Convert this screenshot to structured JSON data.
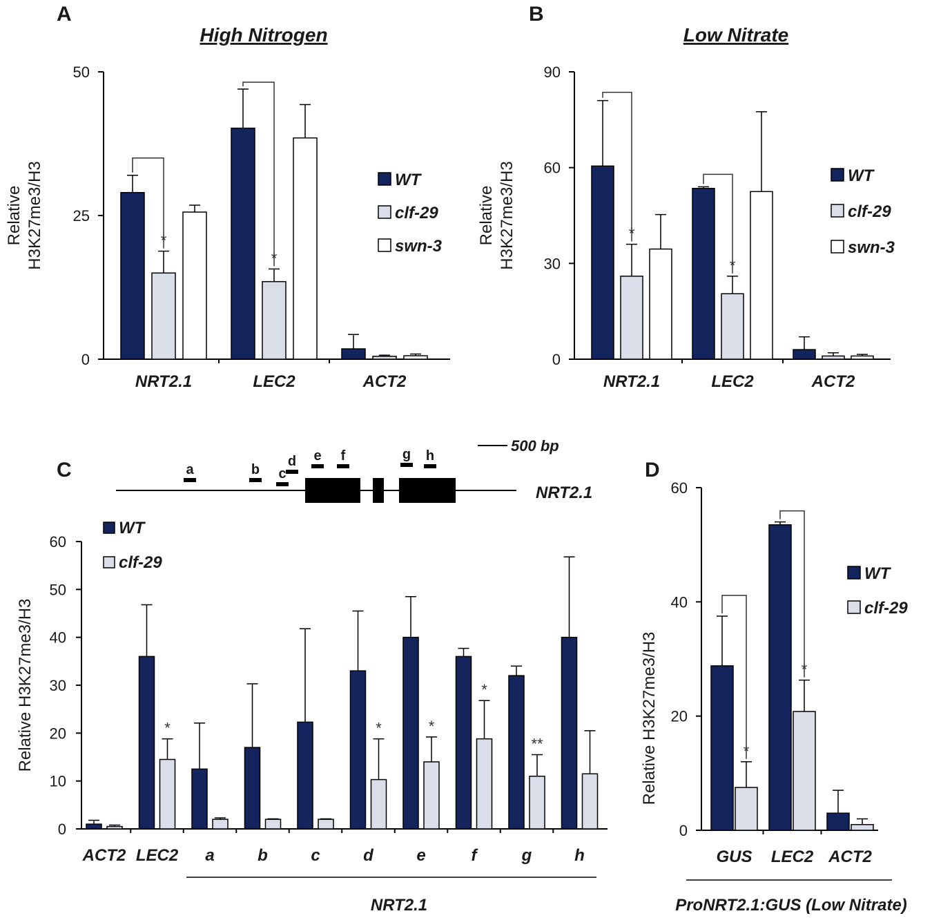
{
  "colors": {
    "WT": "#14245c",
    "clf-29": "#d9dee8",
    "swn-3": "#ffffff"
  },
  "chart_data": [
    {
      "id": "A",
      "type": "bar",
      "letter": "A",
      "title": "High Nitrogen",
      "ylabel": [
        "Relative",
        "H3K27me3/H3"
      ],
      "ylim": [
        0,
        50
      ],
      "yticks": [
        0,
        25,
        50
      ],
      "categories": [
        "NRT2.1",
        "LEC2",
        "ACT2"
      ],
      "series": [
        {
          "name": "WT",
          "values": [
            29,
            40.2,
            1.8
          ],
          "errors": [
            3,
            6.8,
            2.5
          ]
        },
        {
          "name": "clf-29",
          "values": [
            15,
            13.5,
            0.5
          ],
          "errors": [
            3.8,
            2.2,
            0.2
          ]
        },
        {
          "name": "swn-3",
          "values": [
            25.6,
            38.5,
            0.6
          ],
          "errors": [
            1.2,
            5.8,
            0.3
          ]
        }
      ],
      "stars": [
        {
          "cat": 0,
          "series": 1,
          "label": "*"
        },
        {
          "cat": 1,
          "series": 1,
          "label": "*"
        }
      ],
      "legend_position": "right"
    },
    {
      "id": "B",
      "type": "bar",
      "letter": "B",
      "title": "Low Nitrate",
      "ylabel": [
        "Relative",
        "H3K27me3/H3"
      ],
      "ylim": [
        0,
        90
      ],
      "yticks": [
        0,
        30,
        60,
        90
      ],
      "categories": [
        "NRT2.1",
        "LEC2",
        "ACT2"
      ],
      "series": [
        {
          "name": "WT",
          "values": [
            60.5,
            53.5,
            3
          ],
          "errors": [
            20.5,
            0.5,
            4
          ]
        },
        {
          "name": "clf-29",
          "values": [
            26,
            20.5,
            1
          ],
          "errors": [
            10,
            5.5,
            1
          ]
        },
        {
          "name": "swn-3",
          "values": [
            34.5,
            52.5,
            1
          ],
          "errors": [
            10.8,
            25,
            0.5
          ]
        }
      ],
      "stars": [
        {
          "cat": 0,
          "series": 1,
          "label": "*"
        },
        {
          "cat": 1,
          "series": 1,
          "label": "*"
        }
      ],
      "legend_position": "right"
    },
    {
      "id": "C",
      "type": "bar",
      "letter": "C",
      "title": "",
      "ylabel": [
        "Relative H3K27me3/H3"
      ],
      "ylim": [
        0,
        60
      ],
      "yticks": [
        0,
        10,
        20,
        30,
        40,
        50,
        60
      ],
      "categories": [
        "ACT2",
        "LEC2",
        "a",
        "b",
        "c",
        "d",
        "e",
        "f",
        "g",
        "h"
      ],
      "group_label": "NRT2.1",
      "series": [
        {
          "name": "WT",
          "values": [
            1,
            36,
            12.5,
            17,
            22.3,
            33,
            40,
            36,
            32,
            40
          ],
          "errors": [
            0.8,
            10.8,
            9.6,
            13.3,
            19.5,
            12.5,
            8.5,
            1.7,
            2,
            16.8
          ]
        },
        {
          "name": "clf-29",
          "values": [
            0.5,
            14.5,
            2,
            2,
            2,
            10.3,
            14,
            18.8,
            11,
            11.5
          ],
          "errors": [
            0.3,
            4.3,
            0.3,
            0.1,
            0.1,
            8.5,
            5.2,
            8,
            4.5,
            9
          ]
        }
      ],
      "stars": [
        {
          "cat": 1,
          "series": 1,
          "label": "*"
        },
        {
          "cat": 5,
          "series": 1,
          "label": "*"
        },
        {
          "cat": 6,
          "series": 1,
          "label": "*"
        },
        {
          "cat": 7,
          "series": 1,
          "label": "*"
        },
        {
          "cat": 8,
          "series": 1,
          "label": "**"
        }
      ],
      "legend_position": "top-left"
    },
    {
      "id": "D",
      "type": "bar",
      "letter": "D",
      "title": "",
      "ylabel": [
        "Relative H3K27me3/H3"
      ],
      "ylim": [
        0,
        60
      ],
      "yticks": [
        0,
        20,
        40,
        60
      ],
      "categories": [
        "GUS",
        "LEC2",
        "ACT2"
      ],
      "group_label": "ProNRT2.1:GUS (Low Nitrate)",
      "series": [
        {
          "name": "WT",
          "values": [
            28.8,
            53.5,
            3
          ],
          "errors": [
            8.7,
            0.5,
            4
          ]
        },
        {
          "name": "clf-29",
          "values": [
            7.5,
            20.8,
            1
          ],
          "errors": [
            4.5,
            5.5,
            1
          ]
        }
      ],
      "stars": [
        {
          "cat": 0,
          "series": 1,
          "label": "*"
        },
        {
          "cat": 1,
          "series": 1,
          "label": "*"
        }
      ],
      "legend_position": "right"
    }
  ],
  "gene_diagram": {
    "gene_label": "NRT2.1",
    "scale_label": "500 bp",
    "segments": [
      "a",
      "b",
      "c",
      "d",
      "e",
      "f",
      "g",
      "h"
    ]
  }
}
